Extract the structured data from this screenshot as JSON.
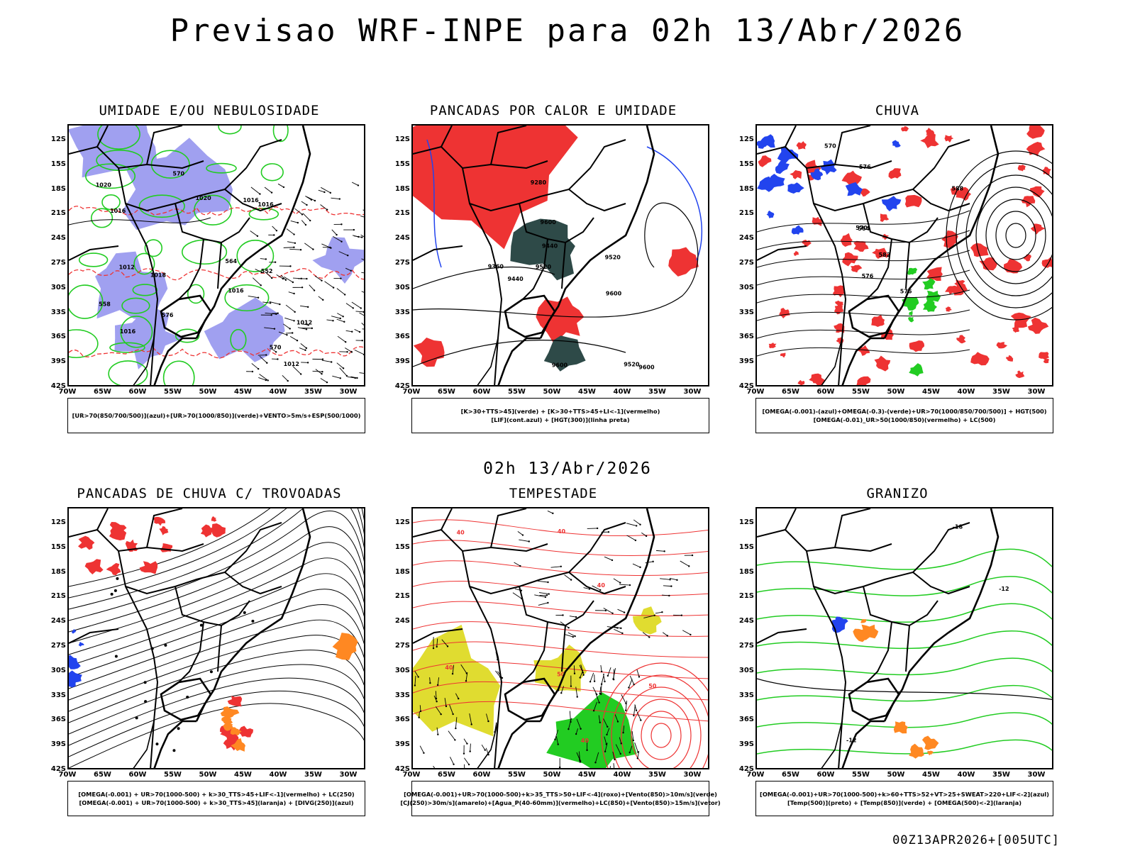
{
  "header": {
    "title": "Previsao WRF-INPE  para 02h 13/Abr/2026",
    "mid_time": "02h 13/Abr/2026",
    "footer": "00Z13APR2026+[005UTC]"
  },
  "axes": {
    "lat_labels": [
      "12S",
      "15S",
      "18S",
      "21S",
      "24S",
      "27S",
      "30S",
      "33S",
      "36S",
      "39S",
      "42S"
    ],
    "lon_labels": [
      "70W",
      "65W",
      "60W",
      "55W",
      "50W",
      "45W",
      "40W",
      "35W",
      "30W"
    ]
  },
  "colors": {
    "humidity_blue": "#a0a0f0",
    "green": "#22cc22",
    "red": "#ee3333",
    "orange": "#ff8822",
    "yellow": "#e0dc30",
    "dark_teal": "#2e4a48",
    "blue": "#2244ee"
  },
  "panels": [
    {
      "title": "UMIDADE E/OU NEBULOSIDADE",
      "legend": [
        "[UR>70(850/700/500)](azul)+[UR>70(1000/850)](verde)+VENTO>5m/s+ESP(500/1000)"
      ],
      "contour_labels": [
        "1012",
        "1012",
        "1016",
        "1020",
        "1012",
        "1016",
        "1016",
        "1018",
        "1016",
        "1020",
        "1016",
        "570",
        "576",
        "570",
        "564",
        "558",
        "552"
      ]
    },
    {
      "title": "PANCADAS POR CALOR E UMIDADE",
      "legend": [
        "[K>30+TTS>45](verde) + [K>30+TTS>45+LI<-1](vermelho)",
        "[LIF](cont.azul) + [HGT(300)](linha preta)"
      ],
      "contour_labels": [
        "9600",
        "9600",
        "9600",
        "9600",
        "9520",
        "9520",
        "9440",
        "9440",
        "9520",
        "9360",
        "9280"
      ]
    },
    {
      "title": "CHUVA",
      "legend": [
        "[OMEGA(-0.001)-(azul)+OMEGA(-0.3)-(verde)+UR>70(1000/850/700/500)] + HGT(500)",
        "[OMEGA(-0.01)_UR>50(1000/850)(vermelho) + LC(500)"
      ],
      "contour_labels": [
        "588",
        "582",
        "576",
        "570",
        "564",
        "576",
        "570",
        "576"
      ]
    },
    {
      "title": "PANCADAS DE CHUVA C/ TROVOADAS",
      "legend": [
        "[OMEGA(-0.001) + UR>70(1000-500) + k>30_TTS>45+LIF<-1](vermelho) + LC(250)",
        "[OMEGA(-0.001) + UR>70(1000-500) + k>30_TTS>45](laranja) + [DIVG(250)](azul)"
      ],
      "contour_labels": []
    },
    {
      "title": "TEMPESTADE",
      "legend": [
        "[OMEGA(-0.001)+UR>70(1000-500)+k>35_TTS>50+LIF<-4](roxo)+[Vento(850)>10m/s](verde)",
        "[CJ(250)>30m/s](amarelo)+[Agua_P(40-60mm)](vermelho)+LC(850)+[Vento(850)>15m/s](vetor)"
      ],
      "contour_labels": [
        "40",
        "50",
        "40",
        "50",
        "40",
        "40",
        "40"
      ]
    },
    {
      "title": "GRANIZO",
      "legend": [
        "[OMEGA(-0.001)+UR>70(1000-500)+k>60+TTS>52+VT>25+SWEAT>220+LIF<-2](azul)",
        "[Temp(500)](preto) + [Temp(850)](verde) + [OMEGA(500)<-2](laranja)"
      ],
      "contour_labels": [
        "-12",
        "-12",
        "-18"
      ]
    }
  ]
}
